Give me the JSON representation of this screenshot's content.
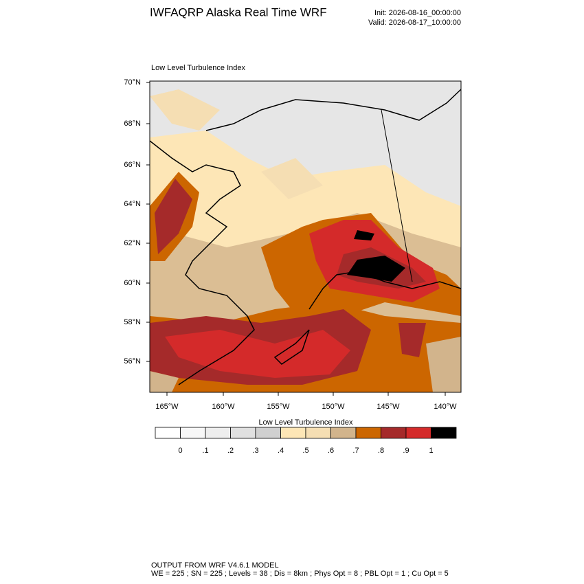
{
  "header": {
    "title": "IWFAQRP Alaska Real Time WRF",
    "init": "Init: 2026-08-16_00:00:00",
    "valid": "Valid: 2026-08-17_10:00:00"
  },
  "map": {
    "title": "Low Level Turbulence Index",
    "lat_labels": [
      "70°N",
      "68°N",
      "66°N",
      "64°N",
      "62°N",
      "60°N",
      "58°N",
      "56°N"
    ],
    "lon_labels": [
      "165°W",
      "160°W",
      "155°W",
      "150°W",
      "145°W",
      "140°W"
    ]
  },
  "colorbar": {
    "title": "Low Level Turbulence Index",
    "colors": [
      "#ffffff",
      "#f7f7f7",
      "#eeeeee",
      "#e0e0e0",
      "#d0d0d0",
      "#fde6b6",
      "#f5deb3",
      "#d2b48c",
      "#cc6600",
      "#a52a2a",
      "#d42a2a",
      "#000000"
    ],
    "labels": [
      "0",
      ".1",
      ".2",
      ".3",
      ".4",
      ".5",
      ".6",
      ".7",
      ".8",
      ".9",
      "1"
    ]
  },
  "footer": [
    "OUTPUT FROM WRF V4.6.1 MODEL",
    "WE = 225 ; SN = 225 ; Levels = 38 ; Dis = 8km ; Phys Opt = 8 ; PBL Opt = 1 ; Cu Opt = 5"
  ]
}
